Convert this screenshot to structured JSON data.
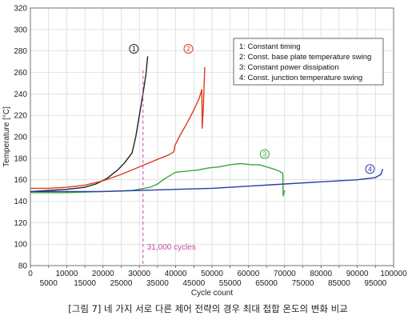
{
  "caption": "[그림 7] 네 가지 서로 다른 제어 전략의 경우 최대 접합 온도의 변화 비교",
  "chart_data": {
    "type": "line",
    "title": "",
    "xlabel": "Cycle count",
    "ylabel": "Temperature [°C]",
    "xlim": [
      0,
      100000
    ],
    "ylim": [
      80,
      320
    ],
    "x_ticks_lower": [
      "0",
      "10000",
      "20000",
      "30000",
      "40000",
      "50000",
      "60000",
      "70000",
      "80000",
      "90000",
      "100000"
    ],
    "x_ticks_upper": [
      "5000",
      "15000",
      "25000",
      "35000",
      "45000",
      "55000",
      "65000",
      "75000",
      "85000",
      "95000"
    ],
    "y_ticks": [
      "80",
      "100",
      "120",
      "140",
      "160",
      "180",
      "200",
      "220",
      "240",
      "260",
      "280",
      "300",
      "320"
    ],
    "grid": true,
    "legend_position": "top-right",
    "legend": [
      "1: Constant timing",
      "2: Const. base plate temperature swing",
      "3: Constant power dissipation",
      "4: Const. junction temperature swing"
    ],
    "annotation": {
      "text": "31,000 cycles",
      "x": 31000,
      "color": "#c04aa8"
    },
    "series": [
      {
        "marker": "1",
        "color": "#222222",
        "marker_x": 28500,
        "marker_y": 282,
        "points": [
          [
            0,
            149
          ],
          [
            5000,
            150
          ],
          [
            10000,
            151
          ],
          [
            15000,
            153
          ],
          [
            18000,
            156
          ],
          [
            21000,
            161
          ],
          [
            24000,
            169
          ],
          [
            26000,
            176
          ],
          [
            28000,
            185
          ],
          [
            28200,
            188
          ],
          [
            29000,
            200
          ],
          [
            30000,
            220
          ],
          [
            31000,
            240
          ],
          [
            31800,
            258
          ],
          [
            32300,
            275
          ]
        ]
      },
      {
        "marker": "2",
        "color": "#e03a1e",
        "marker_x": 43500,
        "marker_y": 282,
        "points": [
          [
            0,
            152
          ],
          [
            5000,
            152
          ],
          [
            10000,
            153
          ],
          [
            15000,
            155
          ],
          [
            20000,
            159
          ],
          [
            25000,
            165
          ],
          [
            30000,
            172
          ],
          [
            35000,
            179
          ],
          [
            38000,
            183
          ],
          [
            39500,
            186
          ],
          [
            39800,
            192
          ],
          [
            41000,
            200
          ],
          [
            43000,
            212
          ],
          [
            45000,
            225
          ],
          [
            46500,
            236
          ],
          [
            47200,
            244
          ],
          [
            47300,
            208
          ],
          [
            47600,
            225
          ],
          [
            48000,
            265
          ]
        ]
      },
      {
        "marker": "3",
        "color": "#3aa83a",
        "marker_x": 64500,
        "marker_y": 184,
        "points": [
          [
            0,
            148
          ],
          [
            10000,
            148
          ],
          [
            20000,
            149
          ],
          [
            28000,
            150
          ],
          [
            33000,
            153
          ],
          [
            35000,
            156
          ],
          [
            37000,
            161
          ],
          [
            38500,
            164
          ],
          [
            40000,
            167
          ],
          [
            43000,
            168
          ],
          [
            46000,
            169
          ],
          [
            49000,
            171
          ],
          [
            52000,
            172
          ],
          [
            55000,
            174
          ],
          [
            58000,
            175
          ],
          [
            61000,
            174
          ],
          [
            63000,
            174
          ],
          [
            65000,
            172
          ],
          [
            67000,
            170
          ],
          [
            68500,
            168
          ],
          [
            69500,
            166
          ],
          [
            69600,
            145
          ],
          [
            70000,
            150
          ]
        ]
      },
      {
        "marker": "4",
        "color": "#2a3ca8",
        "marker_x": 93500,
        "marker_y": 170,
        "points": [
          [
            0,
            149
          ],
          [
            10000,
            149
          ],
          [
            20000,
            149
          ],
          [
            30000,
            150
          ],
          [
            40000,
            151
          ],
          [
            50000,
            152
          ],
          [
            60000,
            154
          ],
          [
            70000,
            156
          ],
          [
            80000,
            158
          ],
          [
            90000,
            160
          ],
          [
            95000,
            162
          ],
          [
            96500,
            165
          ],
          [
            97000,
            170
          ]
        ]
      }
    ]
  }
}
